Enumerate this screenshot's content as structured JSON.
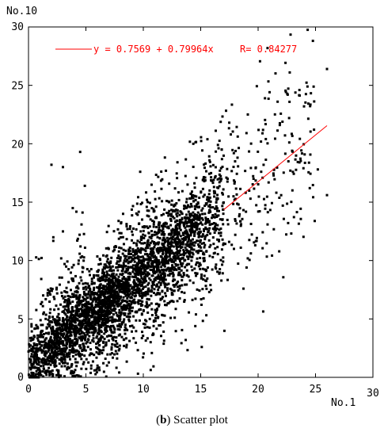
{
  "chart_data": {
    "type": "scatter",
    "title": "",
    "xlabel": "No.1",
    "ylabel": "No.10",
    "xlim": [
      0,
      30
    ],
    "ylim": [
      0,
      30
    ],
    "x_ticks": [
      "0",
      "5",
      "10",
      "15",
      "20",
      "25",
      "30"
    ],
    "y_ticks": [
      "0",
      "5",
      "10",
      "15",
      "20",
      "25",
      "30"
    ],
    "grid": false,
    "point_color": "#000000",
    "fit": {
      "label": "y = 0.7569 + 0.79964x",
      "r_label": "R= 0.84277",
      "intercept": 0.7569,
      "slope": 0.79964,
      "r": 0.84277,
      "color": "#ff0000",
      "x_range": [
        17,
        26
      ]
    },
    "cloud": {
      "description_hidden": true,
      "point_count": 2600,
      "x_range": [
        0,
        26
      ],
      "y_range": [
        0,
        26.5
      ]
    },
    "outliers": [
      {
        "x": 26.0,
        "y": 26.4
      },
      {
        "x": 24.3,
        "y": 24.9
      },
      {
        "x": 23.6,
        "y": 24.6
      },
      {
        "x": 21.7,
        "y": 23.6
      },
      {
        "x": 24.0,
        "y": 23.2
      },
      {
        "x": 4.5,
        "y": 19.3
      },
      {
        "x": 2.0,
        "y": 18.2
      },
      {
        "x": 3.0,
        "y": 18.0
      },
      {
        "x": 26.0,
        "y": 15.6
      },
      {
        "x": 24.5,
        "y": 16.2
      },
      {
        "x": 25.2,
        "y": 17.8
      },
      {
        "x": 22.7,
        "y": 22.2
      }
    ]
  },
  "caption": {
    "bold": "b",
    "text": " Scatter plot"
  }
}
